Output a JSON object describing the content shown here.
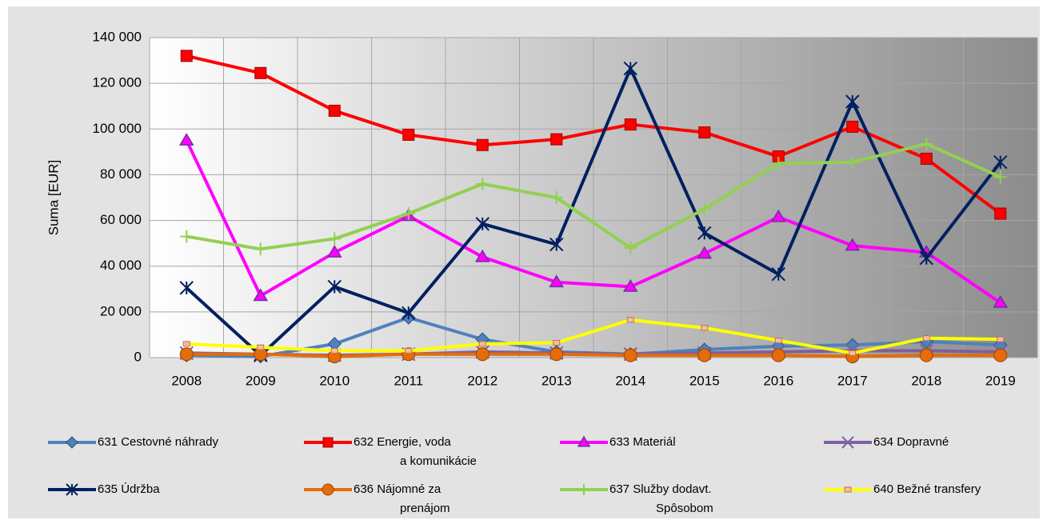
{
  "chart_data": {
    "type": "line",
    "y_label": "Suma [EUR]",
    "categories": [
      "2008",
      "2009",
      "2010",
      "2011",
      "2012",
      "2013",
      "2014",
      "2015",
      "2016",
      "2017",
      "2018",
      "2019"
    ],
    "ylim": [
      0,
      140000
    ],
    "yticks": [
      {
        "value": 0,
        "label": "0"
      },
      {
        "value": 20000,
        "label": "20 000"
      },
      {
        "value": 40000,
        "label": "40 000"
      },
      {
        "value": 60000,
        "label": "60 000"
      },
      {
        "value": 80000,
        "label": "80 000"
      },
      {
        "value": 100000,
        "label": "100 000"
      },
      {
        "value": 120000,
        "label": "120 000"
      },
      {
        "value": 140000,
        "label": "140 000"
      }
    ],
    "grid": true,
    "legend": "bottom",
    "series": [
      {
        "name": "631 Cestovné náhrady",
        "color": "#4f81bd",
        "marker": "diamond",
        "values": [
          1000,
          500,
          6000,
          17500,
          8000,
          2500,
          1500,
          3500,
          5000,
          5500,
          7000,
          5500
        ]
      },
      {
        "name": "632 Energie, voda\na komunikácie",
        "color": "#ff0000",
        "marker": "square",
        "values": [
          132000,
          124500,
          108000,
          97500,
          93000,
          95500,
          102000,
          98500,
          88000,
          101000,
          87000,
          63000
        ]
      },
      {
        "name": "633 Materiál",
        "color": "#ff00ff",
        "marker": "triangle",
        "values": [
          95000,
          27000,
          46000,
          62000,
          44000,
          33000,
          31000,
          45500,
          61500,
          49000,
          46000,
          24000
        ]
      },
      {
        "name": "634 Dopravné",
        "color": "#7f5f9f",
        "marker": "x",
        "values": [
          2000,
          1500,
          1000,
          1500,
          2500,
          2000,
          1500,
          2000,
          2500,
          3000,
          3000,
          2500
        ]
      },
      {
        "name": "635 Údržba",
        "color": "#002060",
        "marker": "star",
        "values": [
          30500,
          1000,
          31000,
          19500,
          58500,
          49500,
          126500,
          54500,
          36500,
          112000,
          43500,
          85500
        ]
      },
      {
        "name": "636 Nájomné za\nprenájom",
        "color": "#e46c0a",
        "marker": "circle",
        "values": [
          1500,
          1500,
          500,
          1500,
          1500,
          1500,
          1000,
          1000,
          1000,
          500,
          1000,
          1000
        ]
      },
      {
        "name": "637 Služby dodavt.\nSpôsobom",
        "color": "#92d050",
        "marker": "plus",
        "values": [
          53000,
          47500,
          52000,
          63000,
          76000,
          70000,
          48000,
          65000,
          85000,
          85500,
          93500,
          79000
        ]
      },
      {
        "name": "640 Bežné transfery",
        "color": "#ffff00",
        "marker": "smallsquare",
        "values": [
          6000,
          4500,
          3000,
          3000,
          6000,
          6500,
          16500,
          13000,
          7500,
          2000,
          8500,
          8000
        ]
      }
    ]
  }
}
